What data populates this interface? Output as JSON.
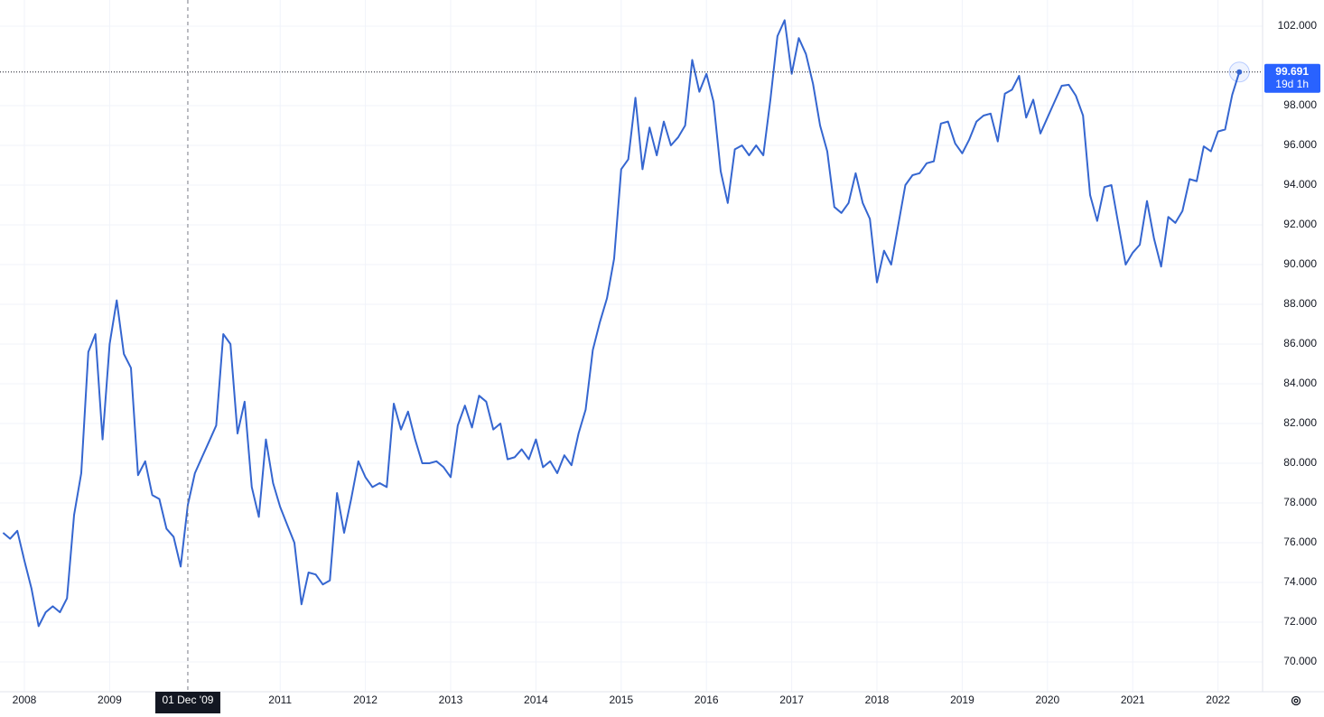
{
  "chart_data": {
    "type": "line",
    "x": [
      2007.75,
      2007.833,
      2007.917,
      2008,
      2008.083,
      2008.167,
      2008.25,
      2008.333,
      2008.417,
      2008.5,
      2008.583,
      2008.667,
      2008.75,
      2008.833,
      2008.917,
      2009,
      2009.083,
      2009.167,
      2009.25,
      2009.333,
      2009.417,
      2009.5,
      2009.583,
      2009.667,
      2009.75,
      2009.833,
      2009.917,
      2010,
      2010.083,
      2010.167,
      2010.25,
      2010.333,
      2010.417,
      2010.5,
      2010.583,
      2010.667,
      2010.75,
      2010.833,
      2010.917,
      2011,
      2011.083,
      2011.167,
      2011.25,
      2011.333,
      2011.417,
      2011.5,
      2011.583,
      2011.667,
      2011.75,
      2011.833,
      2011.917,
      2012,
      2012.083,
      2012.167,
      2012.25,
      2012.333,
      2012.417,
      2012.5,
      2012.583,
      2012.667,
      2012.75,
      2012.833,
      2012.917,
      2013,
      2013.083,
      2013.167,
      2013.25,
      2013.333,
      2013.417,
      2013.5,
      2013.583,
      2013.667,
      2013.75,
      2013.833,
      2013.917,
      2014,
      2014.083,
      2014.167,
      2014.25,
      2014.333,
      2014.417,
      2014.5,
      2014.583,
      2014.667,
      2014.75,
      2014.833,
      2014.917,
      2015,
      2015.083,
      2015.167,
      2015.25,
      2015.333,
      2015.417,
      2015.5,
      2015.583,
      2015.667,
      2015.75,
      2015.833,
      2015.917,
      2016,
      2016.083,
      2016.167,
      2016.25,
      2016.333,
      2016.417,
      2016.5,
      2016.583,
      2016.667,
      2016.75,
      2016.833,
      2016.917,
      2017,
      2017.083,
      2017.167,
      2017.25,
      2017.333,
      2017.417,
      2017.5,
      2017.583,
      2017.667,
      2017.75,
      2017.833,
      2017.917,
      2018,
      2018.083,
      2018.167,
      2018.25,
      2018.333,
      2018.417,
      2018.5,
      2018.583,
      2018.667,
      2018.75,
      2018.833,
      2018.917,
      2019,
      2019.083,
      2019.167,
      2019.25,
      2019.333,
      2019.417,
      2019.5,
      2019.583,
      2019.667,
      2019.75,
      2019.833,
      2019.917,
      2020,
      2020.083,
      2020.167,
      2020.25,
      2020.333,
      2020.417,
      2020.5,
      2020.583,
      2020.667,
      2020.75,
      2020.833,
      2020.917,
      2021,
      2021.083,
      2021.167,
      2021.25,
      2021.333,
      2021.417,
      2021.5,
      2021.583,
      2021.667,
      2021.75,
      2021.833,
      2021.917,
      2022,
      2022.083,
      2022.167,
      2022.25
    ],
    "series": [
      {
        "color": "#3566d0",
        "values": [
          76.5,
          76.2,
          76.6,
          75.1,
          73.7,
          71.8,
          72.5,
          72.8,
          72.5,
          73.2,
          77.4,
          79.5,
          85.6,
          86.5,
          81.2,
          86.0,
          88.2,
          85.5,
          84.8,
          79.4,
          80.1,
          78.4,
          78.2,
          76.7,
          76.3,
          74.8,
          77.9,
          79.5,
          80.3,
          81.1,
          81.9,
          86.5,
          86.0,
          81.5,
          83.1,
          78.8,
          77.3,
          81.2,
          79.0,
          77.8,
          76.9,
          76.0,
          72.9,
          74.5,
          74.4,
          73.9,
          74.1,
          78.5,
          76.5,
          78.2,
          80.1,
          79.3,
          78.8,
          79.0,
          78.8,
          83.0,
          81.7,
          82.6,
          81.2,
          80.0,
          80.0,
          80.1,
          79.8,
          79.3,
          81.9,
          82.9,
          81.8,
          83.4,
          83.1,
          81.7,
          82.0,
          80.2,
          80.3,
          80.7,
          80.2,
          81.2,
          79.8,
          80.1,
          79.5,
          80.4,
          79.9,
          81.5,
          82.7,
          85.7,
          87.1,
          88.3,
          90.3,
          94.8,
          95.3,
          98.4,
          94.8,
          96.9,
          95.5,
          97.2,
          96.0,
          96.4,
          97.0,
          100.3,
          98.7,
          99.6,
          98.2,
          94.7,
          93.1,
          95.8,
          96.0,
          95.5,
          96.0,
          95.5,
          98.3,
          101.5,
          102.3,
          99.6,
          101.4,
          100.6,
          99.1,
          97.0,
          95.7,
          92.9,
          92.6,
          93.1,
          94.6,
          93.1,
          92.3,
          89.1,
          90.7,
          90.0,
          92.0,
          94.0,
          94.5,
          94.6,
          95.1,
          95.2,
          97.1,
          97.2,
          96.1,
          95.6,
          96.3,
          97.2,
          97.5,
          97.6,
          96.2,
          98.6,
          98.8,
          99.5,
          97.4,
          98.3,
          96.6,
          97.4,
          98.2,
          99.0,
          99.05,
          98.5,
          97.5,
          93.5,
          92.2,
          93.9,
          94.0,
          92.0,
          90.0,
          90.6,
          91.0,
          93.2,
          91.3,
          89.9,
          92.4,
          92.1,
          92.7,
          94.3,
          94.2,
          95.95,
          95.7,
          96.7,
          96.8,
          98.55,
          99.691
        ]
      }
    ],
    "countdown": "19d 1h",
    "crosshair": {
      "x": 2009.917,
      "label": "01 Dec '09"
    },
    "xlim": [
      2007.714,
      2022.523
    ],
    "ylim": [
      68.5,
      103.318
    ],
    "xticks": [
      2008,
      2009,
      2011,
      2012,
      2013,
      2014,
      2015,
      2016,
      2017,
      2018,
      2019,
      2020,
      2021,
      2022
    ],
    "yticks": [
      {
        "value": 70,
        "label": "70.000"
      },
      {
        "value": 72,
        "label": "72.000"
      },
      {
        "value": 74,
        "label": "74.000"
      },
      {
        "value": 76,
        "label": "76.000"
      },
      {
        "value": 78,
        "label": "78.000"
      },
      {
        "value": 80,
        "label": "80.000"
      },
      {
        "value": 82,
        "label": "82.000"
      },
      {
        "value": 84,
        "label": "84.000"
      },
      {
        "value": 86,
        "label": "86.000"
      },
      {
        "value": 88,
        "label": "88.000"
      },
      {
        "value": 90,
        "label": "90.000"
      },
      {
        "value": 92,
        "label": "92.000"
      },
      {
        "value": 94,
        "label": "94.000"
      },
      {
        "value": 96,
        "label": "96.000"
      },
      {
        "value": 98,
        "label": "98.000"
      },
      {
        "value": 102,
        "label": "102.000"
      }
    ],
    "grid": true
  }
}
